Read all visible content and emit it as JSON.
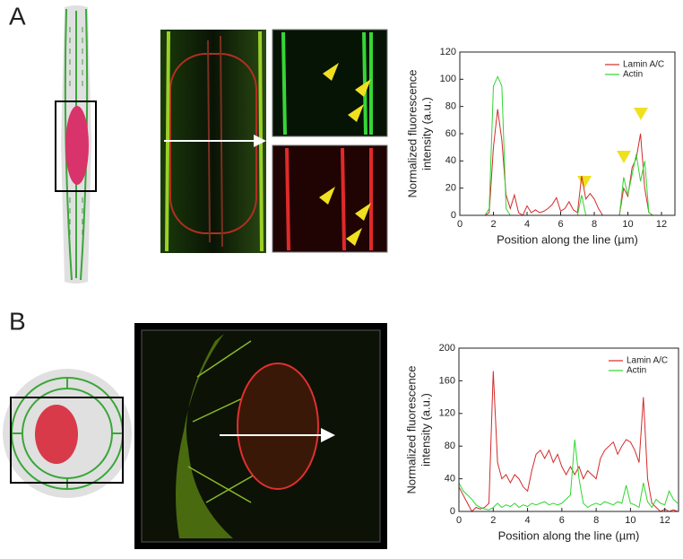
{
  "panel_labels": [
    "A",
    "B"
  ],
  "chart_data": [
    {
      "type": "line",
      "xlabel": "Position along the line (µm)",
      "ylabel": [
        "Normalized fluorescence",
        "intensity (a.u.)"
      ],
      "xlim": [
        0,
        12.8
      ],
      "ylim": [
        0,
        120
      ],
      "xticks": [
        0,
        2,
        4,
        6,
        8,
        10,
        12
      ],
      "yticks": [
        0,
        20,
        40,
        60,
        80,
        100,
        120
      ],
      "legend": "upper right",
      "x": [
        0,
        0.25,
        0.5,
        0.75,
        1,
        1.25,
        1.5,
        1.75,
        2,
        2.25,
        2.5,
        2.75,
        3,
        3.25,
        3.5,
        3.75,
        4,
        4.25,
        4.5,
        4.75,
        5,
        5.25,
        5.5,
        5.75,
        6,
        6.25,
        6.5,
        6.75,
        7,
        7.25,
        7.5,
        7.75,
        8,
        8.25,
        8.5,
        8.75,
        9,
        9.25,
        9.5,
        9.75,
        10,
        10.25,
        10.5,
        10.75,
        11,
        11.25,
        11.5,
        11.75,
        12,
        12.25,
        12.5,
        12.75
      ],
      "series": [
        {
          "name": "Lamin A/C",
          "color": "#d42a2a",
          "values": [
            0,
            0,
            0,
            0,
            0,
            0,
            0,
            2,
            50,
            78,
            55,
            15,
            5,
            15,
            2,
            0,
            7,
            2,
            4,
            2,
            3,
            5,
            8,
            13,
            3,
            5,
            10,
            4,
            2,
            29,
            12,
            16,
            12,
            5,
            0,
            0,
            0,
            0,
            0,
            20,
            14,
            35,
            42,
            60,
            20,
            2,
            0,
            0,
            0,
            0,
            0,
            0
          ]
        },
        {
          "name": "Actin",
          "color": "#2fd62f",
          "values": [
            0,
            0,
            0,
            0,
            0,
            0,
            0,
            5,
            95,
            102,
            95,
            5,
            0,
            0,
            0,
            0,
            0,
            0,
            0,
            0,
            0,
            0,
            0,
            0,
            0,
            0,
            0,
            0,
            0,
            15,
            0,
            0,
            0,
            0,
            0,
            0,
            0,
            0,
            0,
            28,
            15,
            30,
            45,
            25,
            40,
            2,
            0,
            0,
            0,
            0,
            0,
            0
          ]
        }
      ]
    },
    {
      "type": "line",
      "xlabel": "Position along the line (µm)",
      "ylabel": [
        "Normalized fluorescence",
        "intensity (a.u.)"
      ],
      "xlim": [
        0,
        12.8
      ],
      "ylim": [
        0,
        200
      ],
      "xticks": [
        0,
        2,
        4,
        6,
        8,
        10,
        12
      ],
      "yticks": [
        0,
        40,
        80,
        120,
        160,
        200
      ],
      "legend": "upper right",
      "x": [
        0,
        0.25,
        0.5,
        0.75,
        1,
        1.25,
        1.5,
        1.75,
        2,
        2.25,
        2.5,
        2.75,
        3,
        3.25,
        3.5,
        3.75,
        4,
        4.25,
        4.5,
        4.75,
        5,
        5.25,
        5.5,
        5.75,
        6,
        6.25,
        6.5,
        6.75,
        7,
        7.25,
        7.5,
        7.75,
        8,
        8.25,
        8.5,
        8.75,
        9,
        9.25,
        9.5,
        9.75,
        10,
        10.25,
        10.5,
        10.75,
        11,
        11.25,
        11.5,
        11.75,
        12,
        12.25,
        12.5,
        12.75
      ],
      "series": [
        {
          "name": "Lamin A/C",
          "color": "#d42a2a",
          "values": [
            30,
            20,
            10,
            0,
            5,
            3,
            5,
            10,
            172,
            60,
            40,
            45,
            35,
            45,
            40,
            30,
            25,
            50,
            70,
            75,
            65,
            75,
            60,
            70,
            55,
            45,
            55,
            45,
            55,
            40,
            50,
            45,
            40,
            65,
            75,
            80,
            85,
            70,
            80,
            88,
            85,
            75,
            60,
            140,
            40,
            10,
            5,
            0,
            3,
            0,
            2,
            0
          ]
        },
        {
          "name": "Actin",
          "color": "#2fd62f",
          "values": [
            35,
            25,
            20,
            15,
            8,
            5,
            3,
            2,
            5,
            10,
            5,
            8,
            6,
            10,
            5,
            8,
            6,
            10,
            8,
            10,
            12,
            8,
            10,
            8,
            10,
            15,
            20,
            88,
            40,
            10,
            5,
            8,
            10,
            8,
            12,
            10,
            8,
            12,
            10,
            32,
            10,
            8,
            5,
            35,
            12,
            5,
            15,
            10,
            8,
            25,
            15,
            10
          ]
        }
      ]
    }
  ]
}
